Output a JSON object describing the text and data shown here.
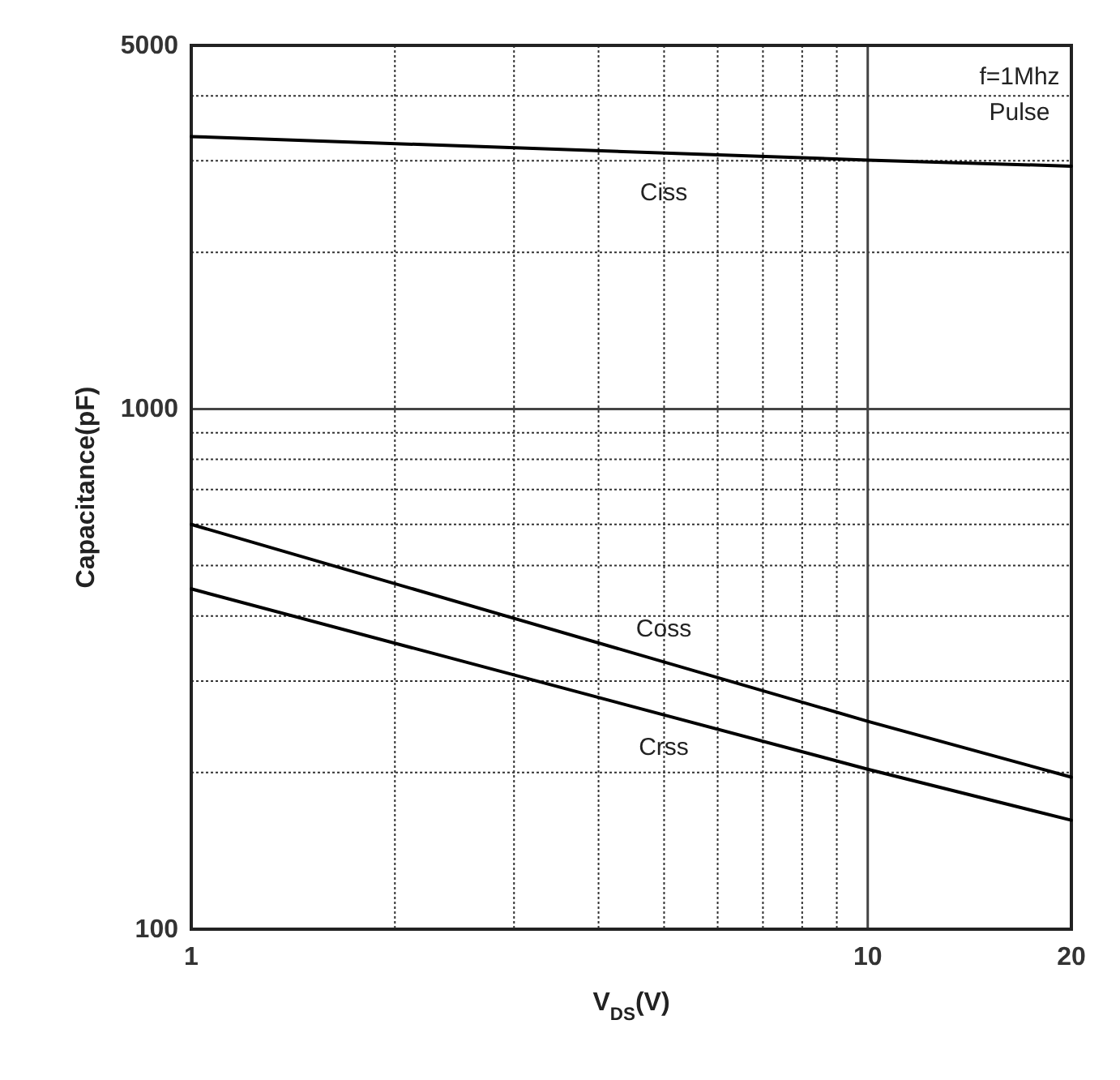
{
  "chart_data": {
    "type": "line",
    "xlabel": "V$_{DS}$(V)",
    "ylabel": "Capacitance(pF)",
    "log": "xy",
    "grid": true,
    "marker": "none",
    "line_style": "solid",
    "xlim": [
      1,
      20
    ],
    "ylim": [
      100,
      5000
    ],
    "xticks": [
      1,
      {
        "value": 2,
        "label": null
      },
      {
        "value": 3,
        "label": null
      },
      {
        "value": 4,
        "label": null
      },
      {
        "value": 5,
        "label": null
      },
      {
        "value": 6,
        "label": null
      },
      {
        "value": 7,
        "label": null
      },
      {
        "value": 8,
        "label": null
      },
      {
        "value": 9,
        "label": null
      },
      10,
      20
    ],
    "yticks": [
      100,
      {
        "value": 200,
        "label": null
      },
      {
        "value": 300,
        "label": null
      },
      {
        "value": 400,
        "label": null
      },
      {
        "value": 500,
        "label": null
      },
      {
        "value": 600,
        "label": null
      },
      {
        "value": 700,
        "label": null
      },
      {
        "value": 800,
        "label": null
      },
      {
        "value": 900,
        "label": null
      },
      1000,
      {
        "value": 2000,
        "label": null
      },
      {
        "value": 3000,
        "label": null
      },
      {
        "value": 4000,
        "label": null
      },
      5000
    ],
    "x": [
      1,
      10,
      20
    ],
    "series": [
      {
        "name": "Ciss",
        "color": "#000000",
        "values": [
          3340,
          3010,
          2930
        ]
      },
      {
        "name": "Coss",
        "color": "#000000",
        "values": [
          600,
          251,
          196
        ]
      },
      {
        "name": "Crss",
        "color": "#000000",
        "values": [
          451,
          203,
          162
        ]
      }
    ],
    "annotations": [
      "f=1Mhz",
      "Pulse"
    ]
  }
}
